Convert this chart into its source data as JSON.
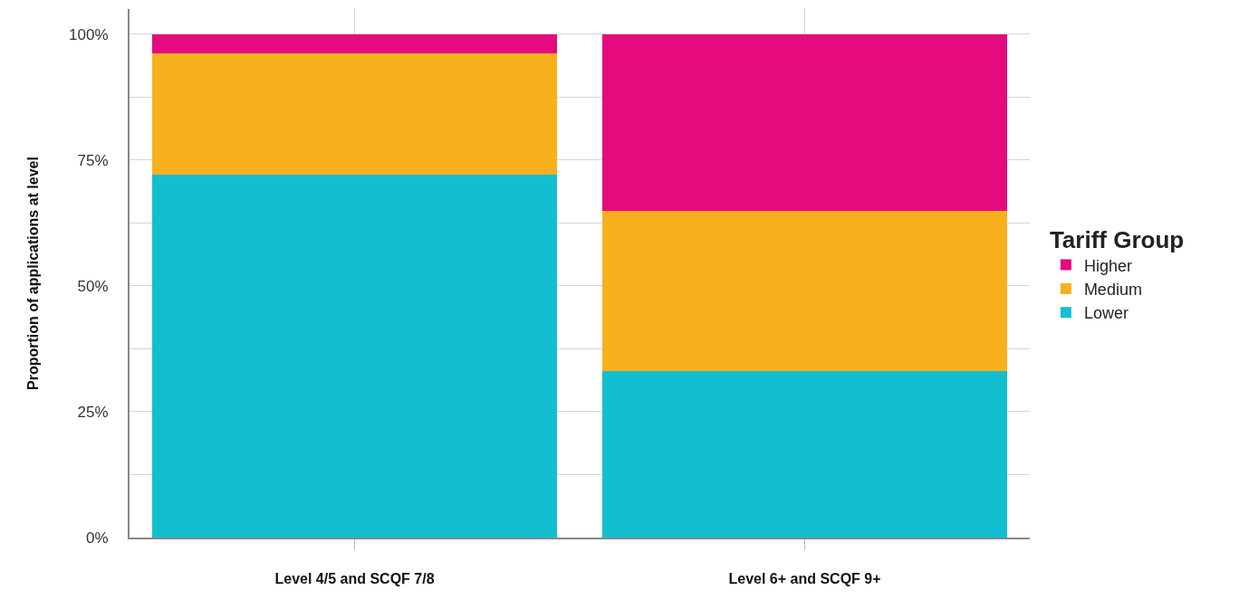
{
  "chart_data": {
    "type": "bar",
    "stacked": true,
    "ylabel": "Proportion of applications at level",
    "legend_title": "Tariff Group",
    "categories": [
      "Level 4/5 and SCQF 7/8",
      "Level 6+ and SCQF 9+"
    ],
    "series": [
      {
        "name": "Lower",
        "color": "#12bfd1",
        "values": [
          72.1,
          33.0
        ]
      },
      {
        "name": "Medium",
        "color": "#f9b01e",
        "values": [
          24.1,
          31.9
        ]
      },
      {
        "name": "Higher",
        "color": "#e40b7e",
        "values": [
          3.8,
          35.1
        ]
      }
    ],
    "ylim": [
      0,
      105
    ],
    "yticks": [
      {
        "value": 0,
        "label": "0%"
      },
      {
        "value": 12.5,
        "label": null
      },
      {
        "value": 25,
        "label": "25%"
      },
      {
        "value": 37.5,
        "label": null
      },
      {
        "value": 50,
        "label": "50%"
      },
      {
        "value": 62.5,
        "label": null
      },
      {
        "value": 75,
        "label": "75%"
      },
      {
        "value": 87.5,
        "label": null
      },
      {
        "value": 100,
        "label": "100%"
      }
    ],
    "grid": true,
    "legend": "right"
  }
}
